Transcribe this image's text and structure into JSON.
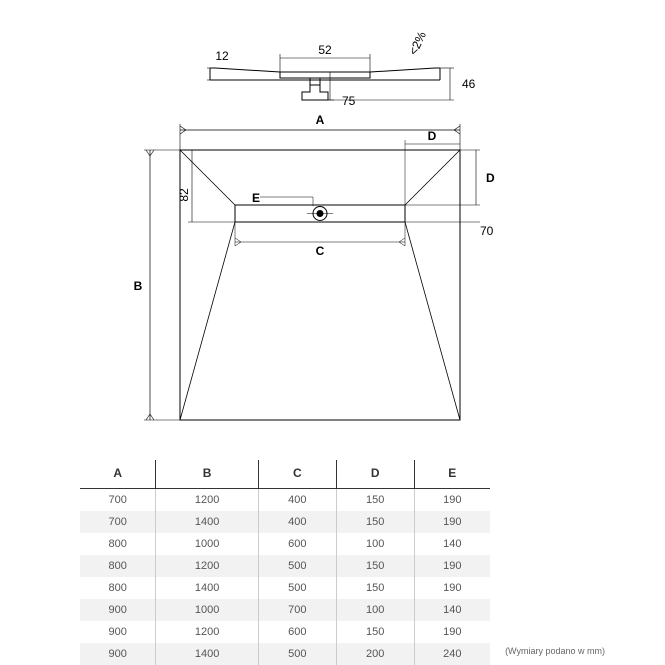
{
  "diagram": {
    "top_view": {
      "label_12": "12",
      "label_52": "52",
      "label_75": "75",
      "label_46": "46",
      "label_slope": "<2%"
    },
    "plan_view": {
      "label_A": "A",
      "label_B": "B",
      "label_C": "C",
      "label_D1": "D",
      "label_D2": "D",
      "label_E": "E",
      "label_82": "82",
      "label_70": "70"
    },
    "stroke": "#000000",
    "stroke_thin": "#333333",
    "background": "#ffffff",
    "font_size_dim": 12
  },
  "table": {
    "columns": [
      "A",
      "B",
      "C",
      "D",
      "E"
    ],
    "rows": [
      [
        "700",
        "1200",
        "400",
        "150",
        "190"
      ],
      [
        "700",
        "1400",
        "400",
        "150",
        "190"
      ],
      [
        "800",
        "1000",
        "600",
        "100",
        "140"
      ],
      [
        "800",
        "1200",
        "500",
        "150",
        "190"
      ],
      [
        "800",
        "1400",
        "500",
        "150",
        "190"
      ],
      [
        "900",
        "1000",
        "700",
        "100",
        "140"
      ],
      [
        "900",
        "1200",
        "600",
        "150",
        "190"
      ],
      [
        "900",
        "1400",
        "500",
        "200",
        "240"
      ]
    ],
    "caption": "(Wymiary podano w mm)",
    "header_color": "#333333",
    "cell_color": "#555555",
    "alt_row_bg": "#f2f2f2",
    "border_color": "#cccccc"
  }
}
